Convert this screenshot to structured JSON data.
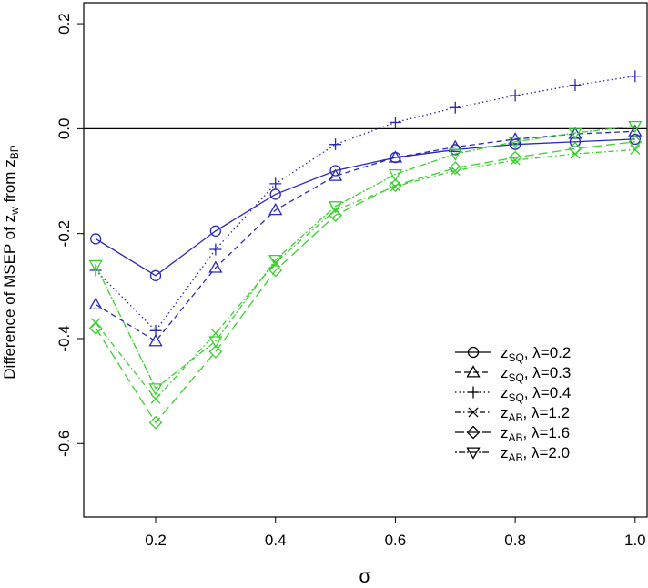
{
  "chart_data": {
    "type": "line",
    "title": "",
    "xlabel": "σ",
    "ylabel": {
      "pre": "Difference of MSEP of z",
      "sub1": "w",
      "mid": " from z",
      "sub2": "BP"
    },
    "xlim": [
      0.08,
      1.02
    ],
    "ylim": [
      -0.74,
      0.24
    ],
    "x_ticks": [
      0.2,
      0.4,
      0.6,
      0.8,
      1.0
    ],
    "x_tick_labels": [
      "0.2",
      "0.4",
      "0.6",
      "0.8",
      "1.0"
    ],
    "y_ticks": [
      -0.6,
      -0.4,
      -0.2,
      0.0,
      0.2
    ],
    "y_tick_labels": [
      "-0.6",
      "-0.4",
      "-0.2",
      "0.0",
      "0.2"
    ],
    "reference_line": 0.0,
    "grid": false,
    "legend_position": "bottom-right",
    "x": [
      0.1,
      0.2,
      0.3,
      0.4,
      0.5,
      0.6,
      0.7,
      0.8,
      0.9,
      1.0
    ],
    "series": [
      {
        "name": "zSQ, λ=0.2",
        "label_base": "z",
        "label_sub": "SQ",
        "label_rest": ", λ=0.2",
        "color": "#2929b8",
        "dash": "",
        "marker": "circle",
        "values": [
          -0.21,
          -0.28,
          -0.195,
          -0.125,
          -0.08,
          -0.055,
          -0.04,
          -0.03,
          -0.025,
          -0.02
        ]
      },
      {
        "name": "zSQ, λ=0.3",
        "label_base": "z",
        "label_sub": "SQ",
        "label_rest": ", λ=0.3",
        "color": "#2929b8",
        "dash": "6 4",
        "marker": "triangle",
        "values": [
          -0.335,
          -0.405,
          -0.265,
          -0.155,
          -0.09,
          -0.055,
          -0.035,
          -0.02,
          -0.01,
          -0.005
        ]
      },
      {
        "name": "zSQ, λ=0.4",
        "label_base": "z",
        "label_sub": "SQ",
        "label_rest": ", λ=0.4",
        "color": "#2929b8",
        "dash": "1.5 3",
        "marker": "plus",
        "values": [
          -0.27,
          -0.385,
          -0.23,
          -0.105,
          -0.03,
          0.012,
          0.04,
          0.063,
          0.083,
          0.1
        ]
      },
      {
        "name": "zAB, λ=1.2",
        "label_base": "z",
        "label_sub": "AB",
        "label_rest": ", λ=1.2",
        "color": "#3ad12d",
        "dash": "6 3 1.5 3",
        "marker": "x",
        "values": [
          -0.37,
          -0.515,
          -0.39,
          -0.255,
          -0.155,
          -0.11,
          -0.08,
          -0.06,
          -0.048,
          -0.04
        ]
      },
      {
        "name": "zAB, λ=1.6",
        "label_base": "z",
        "label_sub": "AB",
        "label_rest": ", λ=1.6",
        "color": "#3ad12d",
        "dash": "10 5",
        "marker": "diamond",
        "values": [
          -0.38,
          -0.56,
          -0.425,
          -0.27,
          -0.165,
          -0.108,
          -0.075,
          -0.055,
          -0.038,
          -0.025
        ]
      },
      {
        "name": "zAB, λ=2.0",
        "label_base": "z",
        "label_sub": "AB",
        "label_rest": ", λ=2.0",
        "color": "#3ad12d",
        "dash": "2 2 7 2",
        "marker": "triangle-down",
        "values": [
          -0.26,
          -0.495,
          -0.405,
          -0.25,
          -0.148,
          -0.087,
          -0.048,
          -0.025,
          -0.008,
          0.005
        ]
      }
    ]
  }
}
